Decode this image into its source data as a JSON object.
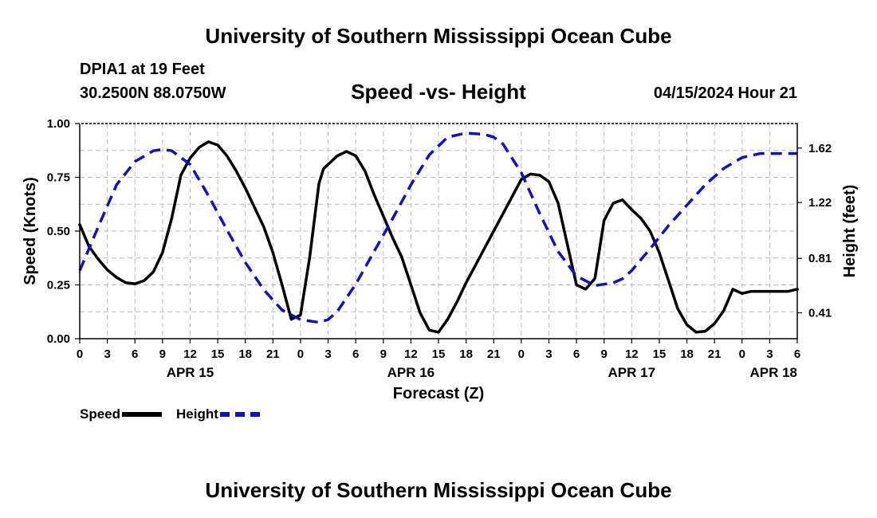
{
  "header": {
    "title": "University of Southern Mississippi Ocean Cube",
    "station": "DPIA1 at 19 Feet",
    "coords": "30.2500N  88.0750W",
    "subtitle": "Speed -vs- Height",
    "datetime": "04/15/2024 Hour 21"
  },
  "footer": {
    "title": "University of Southern Mississippi Ocean Cube"
  },
  "legend": {
    "speed_label": "Speed",
    "height_label": "Height"
  },
  "colors": {
    "speed": "#000000",
    "height": "#1010c8",
    "grid": "#bbbbbb"
  },
  "chart_data": {
    "type": "line",
    "title": "Speed -vs- Height",
    "xlabel": "Forecast (Z)",
    "ylabel": "Speed (Knots)",
    "y2label": "Height (feet)",
    "xlim": [
      0,
      78
    ],
    "ylim": [
      0,
      1
    ],
    "y2lim": [
      0.22,
      1.8
    ],
    "x_ticks": [
      0,
      3,
      6,
      9,
      12,
      15,
      18,
      21,
      24,
      27,
      30,
      33,
      36,
      39,
      42,
      45,
      48,
      51,
      54,
      57,
      60,
      63,
      66,
      69,
      72,
      75,
      78
    ],
    "x_tick_labels": [
      "0",
      "3",
      "6",
      "9",
      "12",
      "15",
      "18",
      "21",
      "0",
      "3",
      "6",
      "9",
      "12",
      "15",
      "18",
      "21",
      "0",
      "3",
      "6",
      "9",
      "12",
      "15",
      "18",
      "21",
      "0",
      "3",
      "6"
    ],
    "y_ticks": [
      0,
      0.25,
      0.5,
      0.75,
      1.0
    ],
    "y_tick_labels": [
      "0.00",
      "0.25",
      "0.50",
      "0.75",
      "1.00"
    ],
    "y2_ticks": [
      0.41,
      0.81,
      1.22,
      1.62
    ],
    "y2_tick_labels": [
      "0.41",
      "0.81",
      "1.22",
      "1.62"
    ],
    "day_labels": [
      {
        "x": 12,
        "label": "APR 15"
      },
      {
        "x": 36,
        "label": "APR 16"
      },
      {
        "x": 60,
        "label": "APR 17"
      },
      {
        "x": 78,
        "label": "APR 18"
      }
    ],
    "grid": true,
    "series": [
      {
        "name": "Speed",
        "axis": "left",
        "style": "solid",
        "x": [
          0,
          1,
          2,
          3,
          4,
          5,
          6,
          7,
          8,
          9,
          10,
          11,
          12,
          13,
          14,
          15,
          16,
          17,
          18,
          19,
          20,
          21,
          22,
          23,
          24,
          25,
          26,
          26.5,
          27,
          28,
          29,
          30,
          31,
          32,
          33,
          34,
          35,
          36,
          37,
          38,
          39,
          40,
          41,
          42,
          43,
          44,
          45,
          46,
          47,
          48,
          49,
          50,
          51,
          52,
          53,
          54,
          55,
          56,
          57,
          58,
          59,
          60,
          61,
          62,
          63,
          64,
          65,
          66,
          67,
          68,
          69,
          70,
          71,
          72,
          73,
          74,
          75,
          76,
          77,
          78
        ],
        "values": [
          0.53,
          0.43,
          0.37,
          0.32,
          0.285,
          0.26,
          0.255,
          0.27,
          0.31,
          0.4,
          0.56,
          0.76,
          0.84,
          0.89,
          0.915,
          0.9,
          0.85,
          0.78,
          0.7,
          0.61,
          0.52,
          0.4,
          0.25,
          0.09,
          0.11,
          0.38,
          0.72,
          0.79,
          0.81,
          0.85,
          0.87,
          0.85,
          0.78,
          0.67,
          0.57,
          0.47,
          0.38,
          0.25,
          0.12,
          0.04,
          0.03,
          0.09,
          0.17,
          0.26,
          0.34,
          0.42,
          0.5,
          0.58,
          0.66,
          0.74,
          0.765,
          0.76,
          0.73,
          0.63,
          0.44,
          0.25,
          0.23,
          0.28,
          0.55,
          0.63,
          0.645,
          0.6,
          0.56,
          0.5,
          0.4,
          0.27,
          0.14,
          0.065,
          0.03,
          0.035,
          0.07,
          0.13,
          0.23,
          0.21,
          0.22,
          0.22,
          0.22,
          0.22,
          0.22,
          0.23
        ]
      },
      {
        "name": "Height",
        "axis": "right",
        "style": "dashed",
        "x": [
          0,
          2,
          4,
          6,
          8,
          9,
          10,
          12,
          14,
          16,
          18,
          20,
          22,
          24,
          26,
          27,
          28,
          30,
          32,
          34,
          36,
          38,
          40,
          42,
          44,
          45,
          46,
          48,
          50,
          52,
          54,
          56,
          58,
          59,
          60,
          62,
          64,
          66,
          68,
          70,
          72,
          74,
          76,
          78
        ],
        "values": [
          0.72,
          1.04,
          1.35,
          1.52,
          1.6,
          1.61,
          1.6,
          1.5,
          1.27,
          1.02,
          0.78,
          0.58,
          0.43,
          0.36,
          0.34,
          0.36,
          0.42,
          0.62,
          0.86,
          1.1,
          1.35,
          1.57,
          1.7,
          1.73,
          1.72,
          1.7,
          1.65,
          1.44,
          1.14,
          0.86,
          0.68,
          0.61,
          0.63,
          0.66,
          0.72,
          0.88,
          1.05,
          1.2,
          1.35,
          1.47,
          1.55,
          1.58,
          1.58,
          1.58
        ]
      }
    ]
  }
}
